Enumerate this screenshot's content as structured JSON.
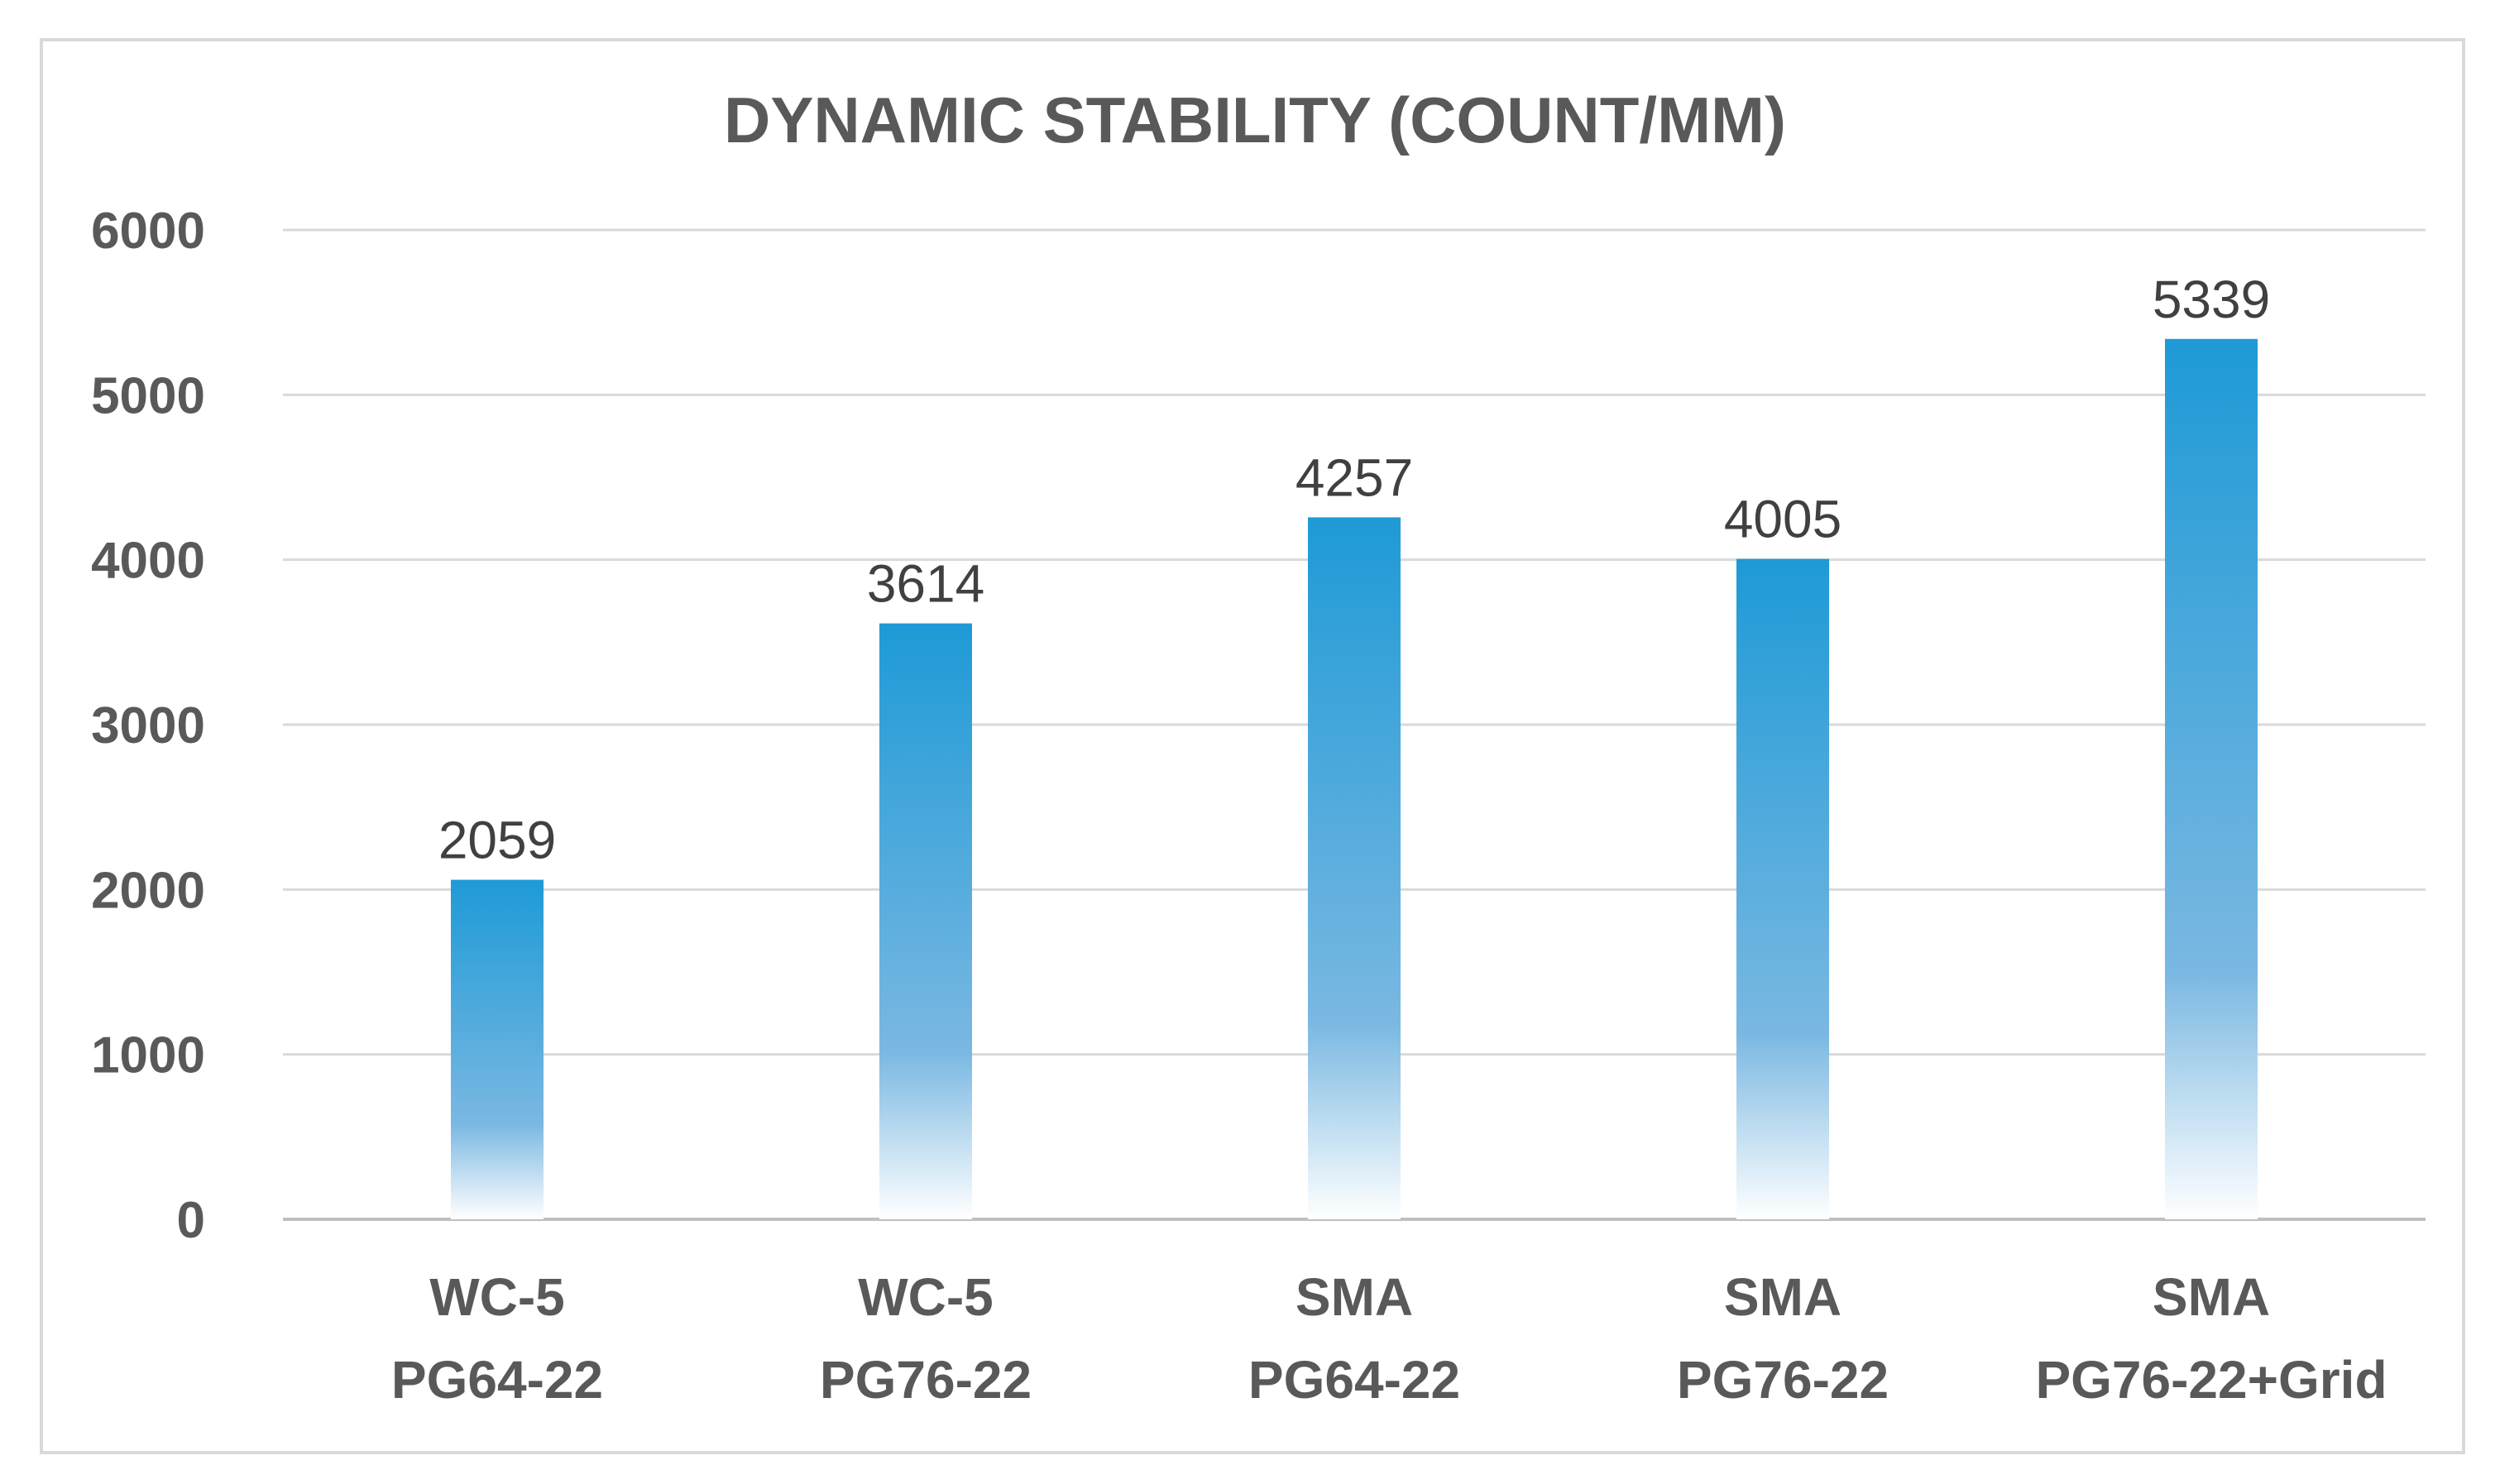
{
  "chart_data": {
    "type": "bar",
    "title": "DYNAMIC STABILITY (COUNT/MM)",
    "categories": [
      [
        "WC-5",
        "PG64-22"
      ],
      [
        "WC-5",
        "PG76-22"
      ],
      [
        "SMA",
        "PG64-22"
      ],
      [
        "SMA",
        "PG76-22"
      ],
      [
        "SMA",
        "PG76-22+Grid"
      ]
    ],
    "values": [
      2059,
      3614,
      4257,
      4005,
      5339
    ],
    "data_labels": [
      "2059",
      "3614",
      "4257",
      "4005",
      "5339"
    ],
    "yticks": [
      "0",
      "1000",
      "2000",
      "3000",
      "4000",
      "5000",
      "6000"
    ],
    "ytick_values": [
      0,
      1000,
      2000,
      3000,
      4000,
      5000,
      6000
    ],
    "ylim": [
      0,
      6000
    ],
    "xlabel": "",
    "ylabel": "",
    "grid": true,
    "legend": "none",
    "bar_color_top": "#1e9ad6",
    "bar_color_mid": "#7ab8e2",
    "bar_color_bottom": "#ffffff"
  }
}
